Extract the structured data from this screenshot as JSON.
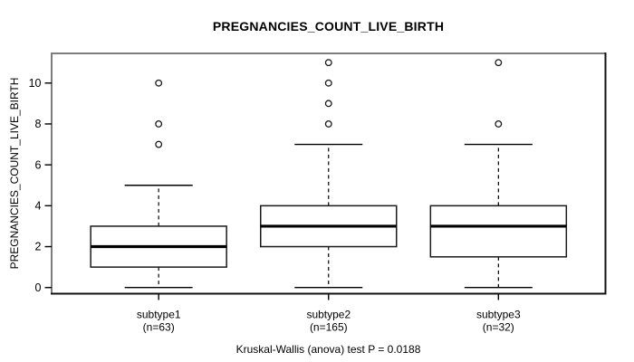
{
  "chart_data": {
    "type": "boxplot",
    "title": "PREGNANCIES_COUNT_LIVE_BIRTH",
    "ylabel": "PREGNANCIES_COUNT_LIVE_BIRTH",
    "xlabel": "",
    "footnote": "Kruskal-Wallis (anova) test P = 0.0188",
    "p_value": 0.0188,
    "yticks": [
      0,
      2,
      4,
      6,
      8,
      10
    ],
    "ylim": [
      -0.3,
      11.45
    ],
    "xlim": [
      0.37,
      3.63
    ],
    "grid": false,
    "legend": null,
    "groups": [
      {
        "label": "subtype1",
        "n_label": "(n=63)",
        "n": 63,
        "position": 1,
        "stats": {
          "whisker_low": 0,
          "q1": 1,
          "median": 2,
          "q3": 3,
          "whisker_high": 5
        },
        "outliers": [
          7,
          8,
          10
        ]
      },
      {
        "label": "subtype2",
        "n_label": "(n=165)",
        "n": 165,
        "position": 2,
        "stats": {
          "whisker_low": 0,
          "q1": 2,
          "median": 3,
          "q3": 4,
          "whisker_high": 7
        },
        "outliers": [
          8,
          9,
          10,
          11
        ]
      },
      {
        "label": "subtype3",
        "n_label": "(n=32)",
        "n": 32,
        "position": 3,
        "stats": {
          "whisker_low": 0,
          "q1": 1.5,
          "median": 3,
          "q3": 4,
          "whisker_high": 7
        },
        "outliers": [
          8,
          11
        ]
      }
    ],
    "colors": {
      "background": "#ffffff",
      "box_fill": "#ffffff",
      "stroke": "#000000",
      "box_stroke": "#1a1a1a",
      "frame_top_left": "#7d7d7d",
      "frame_bottom_right": "#111111"
    }
  }
}
